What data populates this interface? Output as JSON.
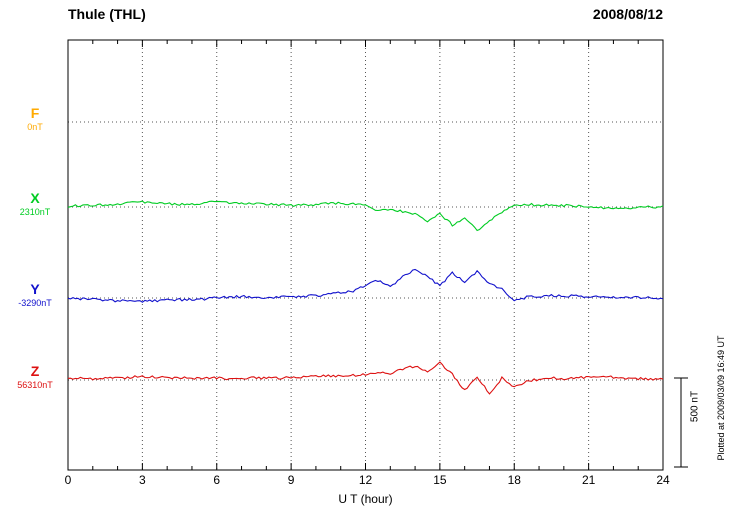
{
  "chart_data": {
    "type": "line",
    "title": "Thule (THL)",
    "date": "2008/08/12",
    "xlabel": "U T (hour)",
    "xlim": [
      0,
      24
    ],
    "x_ticks": [
      0,
      3,
      6,
      9,
      12,
      15,
      18,
      21,
      24
    ],
    "x_step_hours": 0.5,
    "grid": "dotted vertical at 3h intervals, dotted horizontal at each channel baseline",
    "scale_bar_nT": 500,
    "scale_bar_label": "500 nT",
    "plotted_at": "Plotted at 2009/03/09 16:49 UT",
    "units": "nT, deviation from each channel baseline value",
    "series": [
      {
        "name": "F",
        "baseline_label": "0nT",
        "color": "#ffaa00",
        "has_trace": false,
        "values": []
      },
      {
        "name": "X",
        "baseline_label": "2310nT",
        "color": "#00cc22",
        "has_trace": true,
        "values": [
          5,
          8,
          10,
          12,
          18,
          25,
          30,
          22,
          18,
          15,
          18,
          20,
          35,
          25,
          20,
          18,
          15,
          12,
          10,
          12,
          15,
          18,
          20,
          15,
          10,
          -20,
          -10,
          -25,
          -40,
          -80,
          -40,
          -100,
          -60,
          -130,
          -80,
          -30,
          10,
          15,
          10,
          12,
          8,
          5,
          0,
          -5,
          -8,
          -5,
          -3,
          0,
          2
        ]
      },
      {
        "name": "Y",
        "baseline_label": "-3290nT",
        "color": "#1111cc",
        "has_trace": true,
        "values": [
          0,
          -5,
          -8,
          -12,
          -15,
          -18,
          -20,
          -15,
          -12,
          -10,
          -8,
          -5,
          0,
          5,
          8,
          5,
          3,
          5,
          8,
          10,
          15,
          20,
          30,
          40,
          70,
          100,
          60,
          120,
          160,
          120,
          70,
          140,
          90,
          150,
          80,
          50,
          -20,
          5,
          10,
          15,
          12,
          10,
          8,
          5,
          3,
          5,
          3,
          2,
          0
        ]
      },
      {
        "name": "Z",
        "baseline_label": "56310nT",
        "color": "#dd1111",
        "has_trace": true,
        "values": [
          10,
          8,
          5,
          8,
          10,
          15,
          20,
          18,
          15,
          12,
          10,
          12,
          10,
          8,
          10,
          12,
          10,
          12,
          15,
          18,
          20,
          25,
          20,
          25,
          30,
          40,
          35,
          60,
          80,
          50,
          100,
          30,
          -60,
          20,
          -80,
          10,
          -40,
          -10,
          5,
          10,
          8,
          12,
          15,
          25,
          15,
          10,
          8,
          5,
          5
        ]
      }
    ]
  }
}
